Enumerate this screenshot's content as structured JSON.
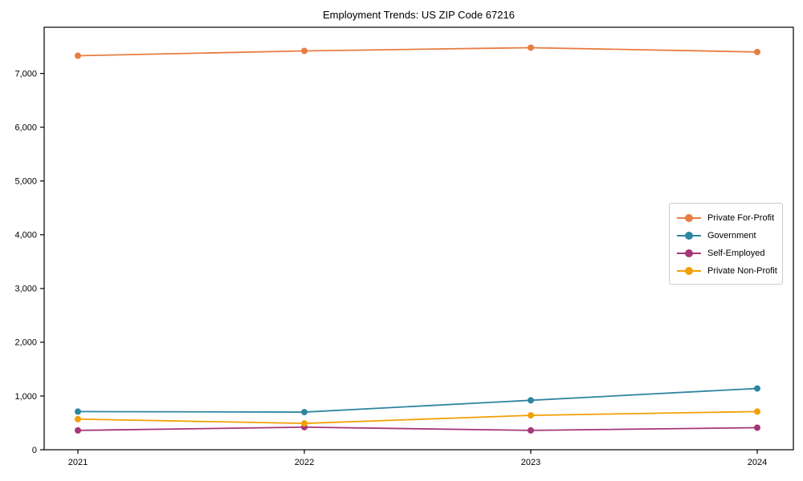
{
  "chart_data": {
    "type": "line",
    "title": "Employment Trends: US ZIP Code 67216",
    "xlabel": "",
    "ylabel": "",
    "categories": [
      "2021",
      "2022",
      "2023",
      "2024"
    ],
    "series": [
      {
        "name": "Private For-Profit",
        "color": "#e87d42",
        "values": [
          7330,
          7420,
          7480,
          7400
        ]
      },
      {
        "name": "Government",
        "color": "#2e86a1",
        "values": [
          710,
          700,
          920,
          1140
        ]
      },
      {
        "name": "Self-Employed",
        "color": "#a53778",
        "values": [
          360,
          420,
          360,
          410
        ]
      },
      {
        "name": "Private Non-Profit",
        "color": "#f2a007",
        "values": [
          570,
          490,
          640,
          710
        ]
      }
    ],
    "ylim": [
      0,
      7860
    ],
    "y_ticks": [
      {
        "value": 0,
        "label": "0"
      },
      {
        "value": 1000,
        "label": "1,000"
      },
      {
        "value": 2000,
        "label": "2,000"
      },
      {
        "value": 3000,
        "label": "3,000"
      },
      {
        "value": 4000,
        "label": "4,000"
      },
      {
        "value": 5000,
        "label": "5,000"
      },
      {
        "value": 6000,
        "label": "6,000"
      },
      {
        "value": 7000,
        "label": "7,000"
      }
    ],
    "grid": false,
    "legend_position": "right"
  }
}
